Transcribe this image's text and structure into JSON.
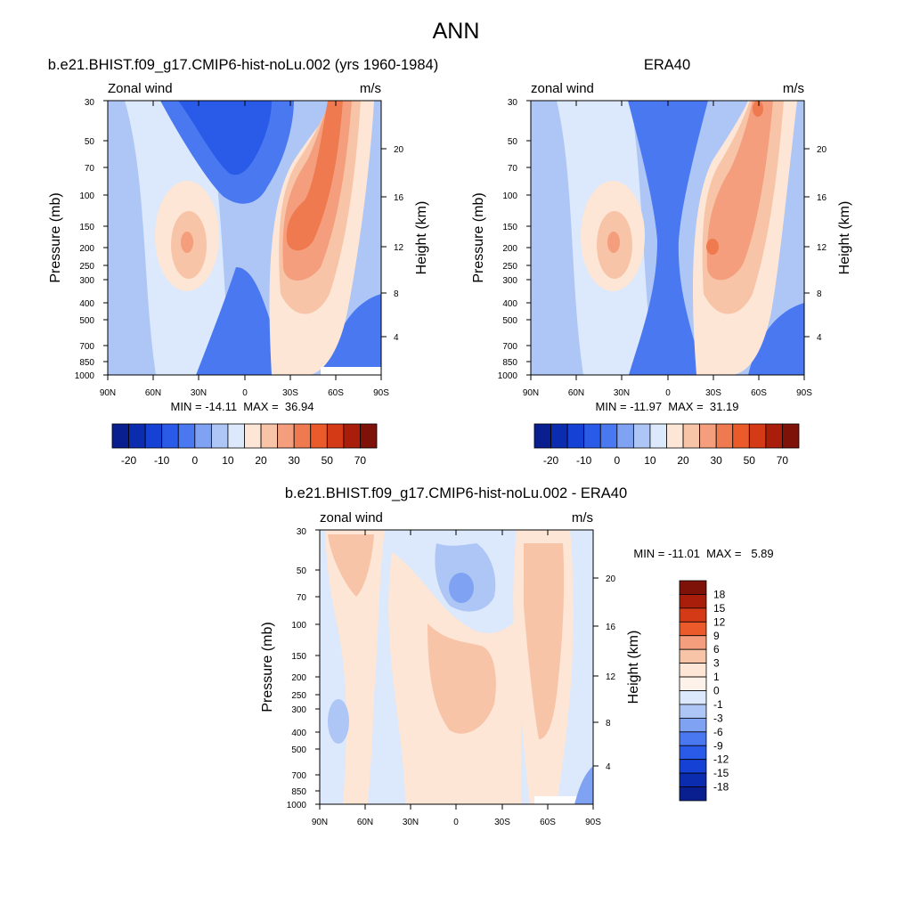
{
  "figure": {
    "title": "ANN"
  },
  "chart_data": [
    {
      "type": "heatmap",
      "title": "b.e21.BHIST.f09_g17.CMIP6-hist-noLu.002 (yrs 1960-1984)",
      "left_label": "Zonal wind",
      "right_label": "m/s",
      "ylabel": "Pressure (mb)",
      "y2label": "Height (km)",
      "x_ticks": [
        "90N",
        "60N",
        "30N",
        "0",
        "30S",
        "60S",
        "90S"
      ],
      "y_ticks": [
        "30",
        "50",
        "70",
        "100",
        "150",
        "200",
        "250",
        "300",
        "400",
        "500",
        "700",
        "850",
        "1000"
      ],
      "y2_ticks": [
        "20",
        "16",
        "12",
        "8",
        "4"
      ],
      "stats": "MIN = -14.11  MAX =  36.94",
      "colorbar": {
        "colors": [
          "#0a1f8f",
          "#0c2cb0",
          "#1541d4",
          "#2a5be8",
          "#4a78f0",
          "#7fa2f3",
          "#aec6f6",
          "#dce8fb",
          "#fde6d6",
          "#f8c4a8",
          "#f49e7d",
          "#ef7a4f",
          "#ea5a2b",
          "#d43a16",
          "#a81e0a",
          "#7e1208"
        ],
        "labels": [
          "-20",
          "-10",
          "0",
          "10",
          "20",
          "30",
          "50",
          "70"
        ]
      }
    },
    {
      "type": "heatmap",
      "title": "ERA40",
      "left_label": "zonal wind",
      "right_label": "m/s",
      "ylabel": "Pressure (mb)",
      "y2label": "Height (km)",
      "x_ticks": [
        "90N",
        "60N",
        "30N",
        "0",
        "30S",
        "60S",
        "90S"
      ],
      "y_ticks": [
        "30",
        "50",
        "70",
        "100",
        "150",
        "200",
        "250",
        "300",
        "400",
        "500",
        "700",
        "850",
        "1000"
      ],
      "y2_ticks": [
        "20",
        "16",
        "12",
        "8",
        "4"
      ],
      "stats": "MIN = -11.97  MAX =  31.19",
      "colorbar": {
        "colors": [
          "#0a1f8f",
          "#0c2cb0",
          "#1541d4",
          "#2a5be8",
          "#4a78f0",
          "#7fa2f3",
          "#aec6f6",
          "#dce8fb",
          "#fde6d6",
          "#f8c4a8",
          "#f49e7d",
          "#ef7a4f",
          "#ea5a2b",
          "#d43a16",
          "#a81e0a",
          "#7e1208"
        ],
        "labels": [
          "-20",
          "-10",
          "0",
          "10",
          "20",
          "30",
          "50",
          "70"
        ]
      }
    },
    {
      "type": "heatmap",
      "title": "b.e21.BHIST.f09_g17.CMIP6-hist-noLu.002 - ERA40",
      "left_label": "zonal wind",
      "right_label": "m/s",
      "ylabel": "Pressure (mb)",
      "y2label": "Height (km)",
      "x_ticks": [
        "90N",
        "60N",
        "30N",
        "0",
        "30S",
        "60S",
        "90S"
      ],
      "y_ticks": [
        "30",
        "50",
        "70",
        "100",
        "150",
        "200",
        "250",
        "300",
        "400",
        "500",
        "700",
        "850",
        "1000"
      ],
      "y2_ticks": [
        "20",
        "16",
        "12",
        "8",
        "4"
      ],
      "stats": "MIN = -11.01  MAX =   5.89",
      "colorbar": {
        "colors": [
          "#7e1208",
          "#a81e0a",
          "#d43a16",
          "#ea5a2b",
          "#f49e7d",
          "#f8c4a8",
          "#fde6d6",
          "#fdf2e9",
          "#dce8fb",
          "#aec6f6",
          "#7fa2f3",
          "#4a78f0",
          "#2a5be8",
          "#1541d4",
          "#0c2cb0",
          "#0a1f8f"
        ],
        "labels": [
          "18",
          "15",
          "12",
          "9",
          "6",
          "3",
          "1",
          "0",
          "-1",
          "-3",
          "-6",
          "-9",
          "-12",
          "-15",
          "-18"
        ]
      }
    }
  ]
}
